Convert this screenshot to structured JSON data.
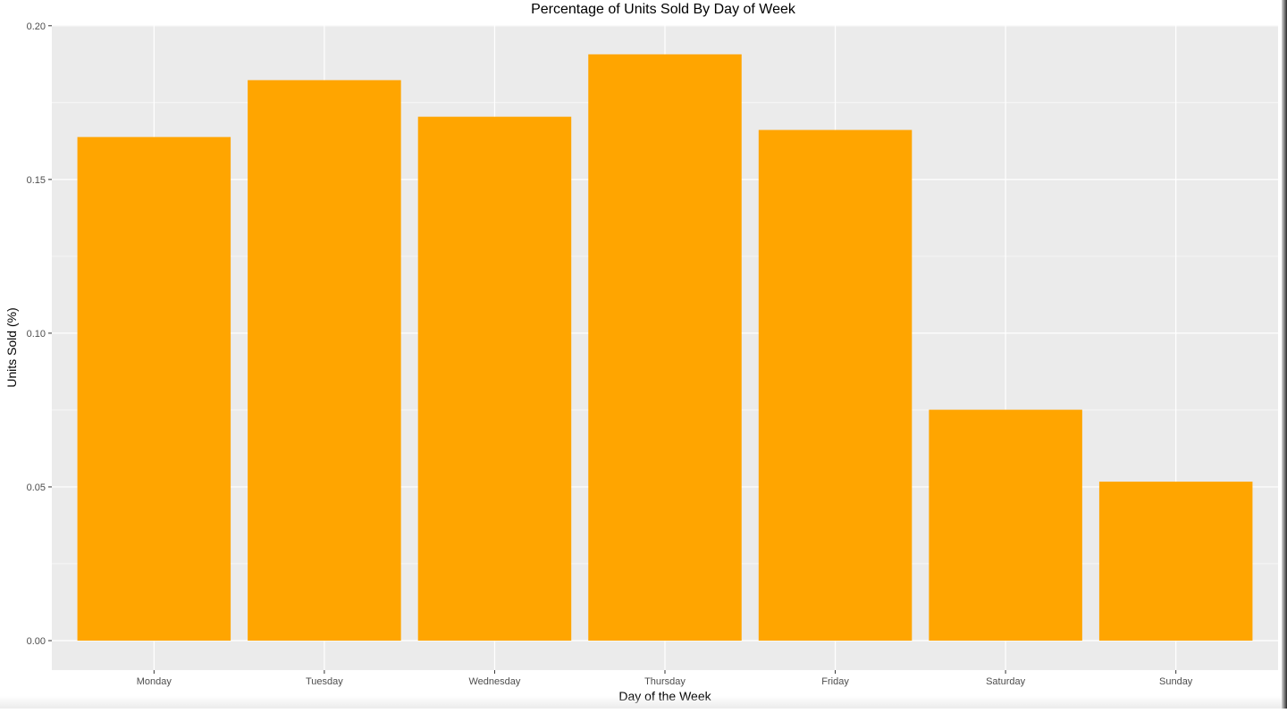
{
  "chart_data": {
    "type": "bar",
    "title": "Percentage of Units Sold By Day of Week",
    "xlabel": "Day of the Week",
    "ylabel": "Units Sold (%)",
    "categories": [
      "Monday",
      "Tuesday",
      "Wednesday",
      "Thursday",
      "Friday",
      "Saturday",
      "Sunday"
    ],
    "values": [
      0.1638,
      0.1823,
      0.1704,
      0.1907,
      0.1661,
      0.0751,
      0.0517
    ],
    "ylim": [
      -0.0095,
      0.2
    ],
    "yticks": [
      "0.00",
      "0.05",
      "0.10",
      "0.15",
      "0.20"
    ],
    "ytick_values": [
      0,
      0.05,
      0.1,
      0.15,
      0.2
    ],
    "grid": true,
    "legend": "none",
    "bar_color": "#FFA500",
    "panel_color": "#EBEBEB"
  }
}
